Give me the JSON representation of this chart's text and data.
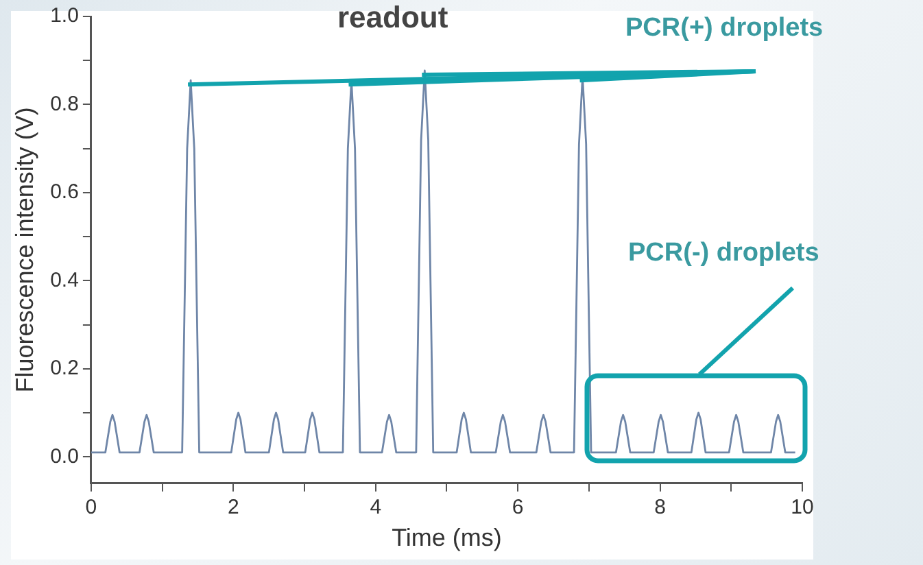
{
  "chart_data": {
    "type": "line",
    "title": "readout",
    "xlabel": "Time (ms)",
    "ylabel": "Fluorescence intensity (V)",
    "annotations": [
      {
        "text": "PCR(+) droplets",
        "x": 6.91,
        "y": 0.864
      },
      "PCR(-) droplets"
    ],
    "xlim": [
      0,
      10
    ],
    "ylim": [
      -0.06,
      1.0
    ],
    "xticks": [
      0,
      {
        "value": 1,
        "label": null
      },
      2,
      {
        "value": 3,
        "label": null
      },
      4,
      {
        "value": 5,
        "label": null
      },
      6,
      {
        "value": 7,
        "label": null
      },
      8,
      {
        "value": 9,
        "label": null
      },
      10
    ],
    "yticks": [
      {
        "value": 0,
        "label": "0.0"
      },
      {
        "value": 0.1,
        "label": null
      },
      {
        "value": 0.2,
        "label": "0.2"
      },
      {
        "value": 0.3,
        "label": null
      },
      {
        "value": 0.4,
        "label": "0.4"
      },
      {
        "value": 0.5,
        "label": null
      },
      {
        "value": 0.6,
        "label": "0.6"
      },
      {
        "value": 0.7,
        "label": null
      },
      {
        "value": 0.8,
        "label": "0.8"
      },
      {
        "value": 0.9,
        "label": null
      },
      {
        "value": 1.0,
        "label": "1.0"
      }
    ],
    "grid": false,
    "legend": false,
    "marker": "none",
    "line_style": "solid",
    "series": [
      {
        "color": "#6f86a8",
        "x": [
          0,
          0.2,
          0.27,
          0.3,
          0.33,
          0.4,
          0.68,
          0.75,
          0.78,
          0.81,
          0.88,
          1.28,
          1.35,
          1.4,
          1.45,
          1.52,
          1.97,
          2.04,
          2.07,
          2.1,
          2.17,
          2.5,
          2.57,
          2.6,
          2.63,
          2.7,
          3.01,
          3.08,
          3.11,
          3.14,
          3.21,
          3.54,
          3.61,
          3.66,
          3.71,
          3.78,
          4.09,
          4.16,
          4.19,
          4.22,
          4.29,
          4.57,
          4.64,
          4.69,
          4.74,
          4.81,
          5.14,
          5.21,
          5.24,
          5.27,
          5.34,
          5.69,
          5.76,
          5.79,
          5.82,
          5.89,
          6.26,
          6.33,
          6.36,
          6.39,
          6.46,
          6.79,
          6.86,
          6.91,
          6.96,
          7.03,
          7.38,
          7.45,
          7.48,
          7.51,
          7.58,
          7.91,
          7.98,
          8.01,
          8.04,
          8.11,
          8.44,
          8.51,
          8.54,
          8.57,
          8.64,
          8.97,
          9.04,
          9.07,
          9.1,
          9.17,
          9.56,
          9.63,
          9.66,
          9.69,
          9.76,
          9.9
        ],
        "values": [
          0.01,
          0.01,
          0.08,
          0.095,
          0.08,
          0.01,
          0.01,
          0.08,
          0.095,
          0.08,
          0.01,
          0.01,
          0.7,
          0.855,
          0.7,
          0.01,
          0.01,
          0.085,
          0.1,
          0.085,
          0.01,
          0.01,
          0.085,
          0.1,
          0.085,
          0.01,
          0.01,
          0.085,
          0.1,
          0.085,
          0.01,
          0.01,
          0.7,
          0.855,
          0.7,
          0.01,
          0.01,
          0.08,
          0.095,
          0.08,
          0.01,
          0.01,
          0.72,
          0.877,
          0.72,
          0.01,
          0.01,
          0.085,
          0.1,
          0.085,
          0.01,
          0.01,
          0.08,
          0.095,
          0.08,
          0.01,
          0.01,
          0.08,
          0.095,
          0.08,
          0.01,
          0.01,
          0.71,
          0.864,
          0.71,
          0.01,
          0.01,
          0.08,
          0.095,
          0.08,
          0.01,
          0.01,
          0.08,
          0.095,
          0.08,
          0.01,
          0.01,
          0.085,
          0.1,
          0.085,
          0.01,
          0.01,
          0.08,
          0.095,
          0.08,
          0.01,
          0.01,
          0.08,
          0.095,
          0.08,
          0.01,
          0.01
        ]
      }
    ]
  }
}
